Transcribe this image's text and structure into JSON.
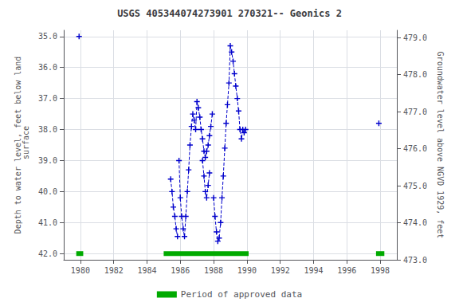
{
  "chart_data": {
    "type": "line",
    "title": "USGS 405344074273901 270321-- Geonics 2",
    "ylabel": "Depth to water level, feet below land\n surface",
    "y2label": "Groundwater level above NGVD 1929, feet",
    "xlim": [
      1979.0,
      1999.0
    ],
    "xticks": [
      1980,
      1982,
      1984,
      1986,
      1988,
      1990,
      1992,
      1994,
      1996,
      1998
    ],
    "ylim": [
      42.2,
      34.8
    ],
    "yticks": [
      {
        "value": 35.0,
        "label": "35.0"
      },
      {
        "value": 36.0,
        "label": "36.0"
      },
      {
        "value": 37.0,
        "label": "37.0"
      },
      {
        "value": 38.0,
        "label": "38.0"
      },
      {
        "value": 39.0,
        "label": "39.0"
      },
      {
        "value": 40.0,
        "label": "40.0"
      },
      {
        "value": 41.0,
        "label": "41.0"
      },
      {
        "value": 42.0,
        "label": "42.0"
      }
    ],
    "y2lim": [
      473.0,
      479.2
    ],
    "y2ticks": [
      {
        "value": 473.0,
        "label": "473.0"
      },
      {
        "value": 474.0,
        "label": "474.0"
      },
      {
        "value": 475.0,
        "label": "475.0"
      },
      {
        "value": 476.0,
        "label": "476.0"
      },
      {
        "value": 477.0,
        "label": "477.0"
      },
      {
        "value": 478.0,
        "label": "478.0"
      },
      {
        "value": 479.0,
        "label": "479.0"
      }
    ],
    "grid": true,
    "legend": "bottom",
    "series": [
      {
        "type": "line",
        "color": "#0000cc",
        "marker": "plus",
        "line_style": "none",
        "x": [
          1979.92
        ],
        "values": [
          35.0
        ]
      },
      {
        "type": "line",
        "color": "#0000cc",
        "marker": "plus",
        "line_style": "dashed",
        "x": [
          1985.42,
          1985.5,
          1985.58,
          1985.67,
          1985.75,
          1985.83
        ],
        "values": [
          39.6,
          40.0,
          40.5,
          40.8,
          41.2,
          41.45
        ]
      },
      {
        "type": "line",
        "color": "#0000cc",
        "marker": "plus",
        "line_style": "dashed",
        "x": [
          1985.92,
          1986.0,
          1986.08,
          1986.17,
          1986.25,
          1986.33,
          1986.42,
          1986.5,
          1986.58,
          1986.67,
          1986.75,
          1986.83,
          1986.92,
          1987.0,
          1987.08,
          1987.17,
          1987.25,
          1987.33,
          1987.42,
          1987.5,
          1987.58,
          1987.67,
          1987.75,
          1987.83,
          1987.92
        ],
        "values": [
          39.0,
          40.2,
          40.8,
          41.2,
          41.45,
          40.8,
          40.0,
          39.3,
          38.5,
          37.9,
          37.5,
          37.7,
          38.0,
          37.1,
          37.3,
          37.6,
          38.0,
          38.3,
          38.7,
          38.9,
          38.7,
          38.5,
          38.2,
          37.9,
          37.5
        ]
      },
      {
        "type": "line",
        "color": "#0000cc",
        "marker": "plus",
        "line_style": "dashed",
        "x": [
          1987.33,
          1987.42,
          1987.5,
          1987.58,
          1987.67,
          1987.75
        ],
        "values": [
          39.0,
          39.5,
          40.0,
          40.2,
          39.8,
          39.4
        ]
      },
      {
        "type": "line",
        "color": "#0000cc",
        "marker": "plus",
        "line_style": "dashed",
        "x": [
          1988.0,
          1988.08,
          1988.17,
          1988.25,
          1988.33,
          1988.42,
          1988.5,
          1988.58,
          1988.67,
          1988.75,
          1988.83,
          1988.92,
          1989.0,
          1989.08,
          1989.17,
          1989.25,
          1989.33,
          1989.42,
          1989.5,
          1989.58,
          1989.67,
          1989.75,
          1989.83,
          1989.92
        ],
        "values": [
          40.2,
          40.8,
          41.3,
          41.6,
          41.5,
          41.0,
          40.2,
          39.5,
          38.6,
          37.8,
          37.2,
          36.5,
          35.3,
          35.5,
          35.8,
          36.2,
          36.6,
          37.0,
          37.4,
          38.0,
          38.3,
          38.0,
          38.1,
          38.0
        ]
      },
      {
        "type": "line",
        "color": "#0000cc",
        "marker": "plus",
        "line_style": "none",
        "x": [
          1997.92
        ],
        "values": [
          37.8
        ]
      },
      {
        "type": "period",
        "name": "Period of approved data",
        "color": "#00aa00",
        "ranges": [
          [
            1979.75,
            1980.17
          ],
          [
            1985.0,
            1990.1
          ],
          [
            1997.75,
            1998.25
          ]
        ],
        "values": [
          42.0,
          42.0,
          42.0
        ]
      }
    ]
  }
}
